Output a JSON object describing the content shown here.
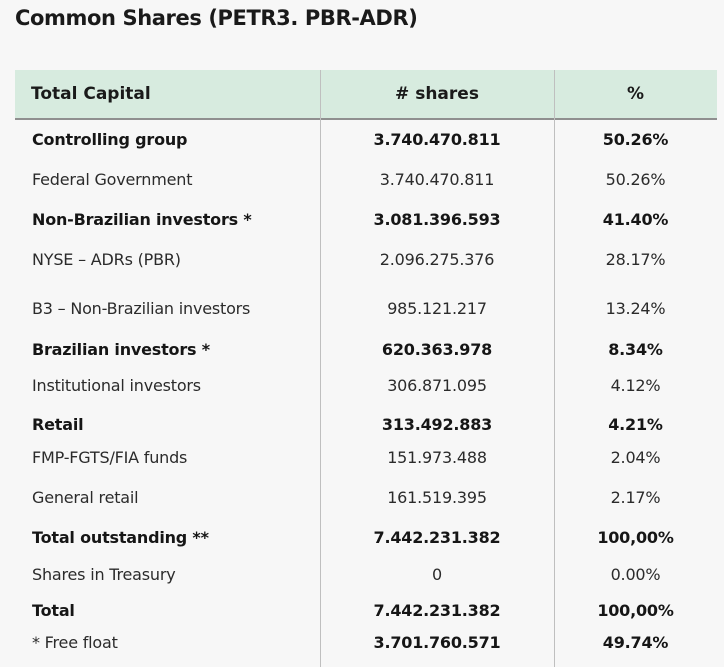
{
  "title": "Common Shares (PETR3. PBR-ADR)",
  "table": {
    "headers": [
      "Total Capital",
      "# shares",
      "%"
    ],
    "rows": [
      {
        "label": "Controlling group",
        "shares": "3.740.470.811",
        "pct": "50.26%",
        "bold": true
      },
      {
        "label": "Federal Government",
        "shares": "3.740.470.811",
        "pct": "50.26%",
        "bold": false
      },
      {
        "label": "Non-Brazilian investors *",
        "shares": "3.081.396.593",
        "pct": "41.40%",
        "bold": true
      },
      {
        "label": "NYSE – ADRs (PBR)",
        "shares": "2.096.275.376",
        "pct": "28.17%",
        "bold": false
      },
      {
        "label": "B3 – Non-Brazilian investors",
        "shares": "985.121.217",
        "pct": "13.24%",
        "bold": false
      },
      {
        "label": "Brazilian investors *",
        "shares": "620.363.978",
        "pct": "8.34%",
        "bold": true
      },
      {
        "label": "Institutional investors",
        "shares": "306.871.095",
        "pct": "4.12%",
        "bold": false
      },
      {
        "label": "Retail",
        "shares": "313.492.883",
        "pct": "4.21%",
        "bold": true
      },
      {
        "label": "FMP-FGTS/FIA funds",
        "shares": "151.973.488",
        "pct": "2.04%",
        "bold": false
      },
      {
        "label": "General retail",
        "shares": "161.519.395",
        "pct": "2.17%",
        "bold": false
      },
      {
        "label": "Total outstanding **",
        "shares": "7.442.231.382",
        "pct": "100,00%",
        "bold": true
      },
      {
        "label": "Shares in Treasury",
        "shares": "0",
        "pct": "0.00%",
        "bold": false
      },
      {
        "label": "Total",
        "shares": "7.442.231.382",
        "pct": "100,00%",
        "bold": true
      },
      {
        "label": "* Free float",
        "shares": "3.701.760.571",
        "pct": "49.74%",
        "bold": false,
        "bold_values": true
      }
    ]
  },
  "colors": {
    "header_bg": "#d7ebdf",
    "page_bg": "#f7f7f7",
    "divider": "#bfbfbf"
  }
}
